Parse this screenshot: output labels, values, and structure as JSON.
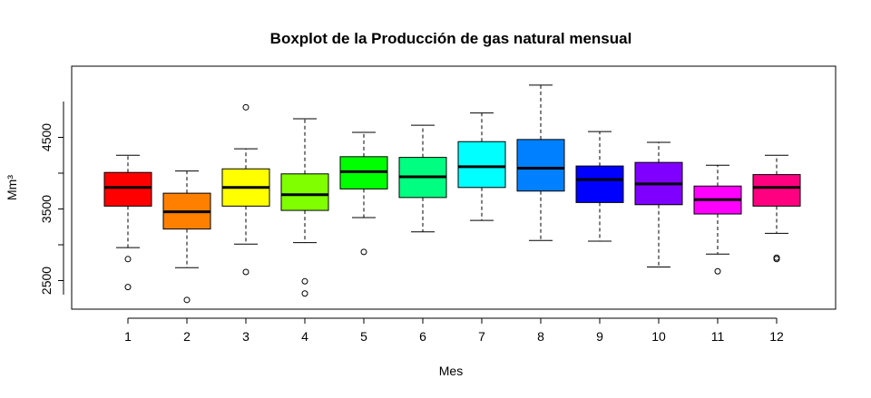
{
  "chart_data": {
    "type": "boxplot",
    "title": "Boxplot de la Producción de gas natural mensual",
    "xlabel": "Mes",
    "ylabel": "Mm³",
    "categories": [
      "1",
      "2",
      "3",
      "4",
      "5",
      "6",
      "7",
      "8",
      "9",
      "10",
      "11",
      "12"
    ],
    "yticks": [
      2500,
      3500,
      4500
    ],
    "ylim": [
      2100,
      5000
    ],
    "grid": false,
    "legend": "none",
    "boxes": [
      {
        "category": "1",
        "min": 2960,
        "q1": 3540,
        "median": 3800,
        "q3": 4010,
        "max": 4250,
        "outliers": [
          2800,
          2410
        ],
        "color": "#FF0000"
      },
      {
        "category": "2",
        "min": 2680,
        "q1": 3220,
        "median": 3460,
        "q3": 3720,
        "max": 4030,
        "outliers": [
          2230
        ],
        "color": "#FF8000"
      },
      {
        "category": "3",
        "min": 3010,
        "q1": 3540,
        "median": 3800,
        "q3": 4060,
        "max": 4340,
        "outliers": [
          4920,
          2620
        ],
        "color": "#FFFF00"
      },
      {
        "category": "4",
        "min": 3030,
        "q1": 3480,
        "median": 3700,
        "q3": 3990,
        "max": 4760,
        "outliers": [
          2490,
          2320
        ],
        "color": "#80FF00"
      },
      {
        "category": "5",
        "min": 3380,
        "q1": 3780,
        "median": 4020,
        "q3": 4230,
        "max": 4570,
        "outliers": [
          2900
        ],
        "color": "#00FF00"
      },
      {
        "category": "6",
        "min": 3180,
        "q1": 3660,
        "median": 3950,
        "q3": 4220,
        "max": 4670,
        "outliers": [],
        "color": "#00FF80"
      },
      {
        "category": "7",
        "min": 3340,
        "q1": 3800,
        "median": 4090,
        "q3": 4440,
        "max": 4840,
        "outliers": [],
        "color": "#00FFFF"
      },
      {
        "category": "8",
        "min": 3060,
        "q1": 3750,
        "median": 4070,
        "q3": 4470,
        "max": 5230,
        "outliers": [],
        "color": "#0080FF"
      },
      {
        "category": "9",
        "min": 3050,
        "q1": 3590,
        "median": 3910,
        "q3": 4100,
        "max": 4580,
        "outliers": [],
        "color": "#0000FF"
      },
      {
        "category": "10",
        "min": 2690,
        "q1": 3560,
        "median": 3850,
        "q3": 4150,
        "max": 4430,
        "outliers": [],
        "color": "#8000FF"
      },
      {
        "category": "11",
        "min": 2870,
        "q1": 3430,
        "median": 3630,
        "q3": 3820,
        "max": 4110,
        "outliers": [
          2630
        ],
        "color": "#FF00FF"
      },
      {
        "category": "12",
        "min": 3160,
        "q1": 3540,
        "median": 3800,
        "q3": 3980,
        "max": 4250,
        "outliers": [
          2800,
          2820
        ],
        "color": "#FF0080"
      }
    ]
  }
}
